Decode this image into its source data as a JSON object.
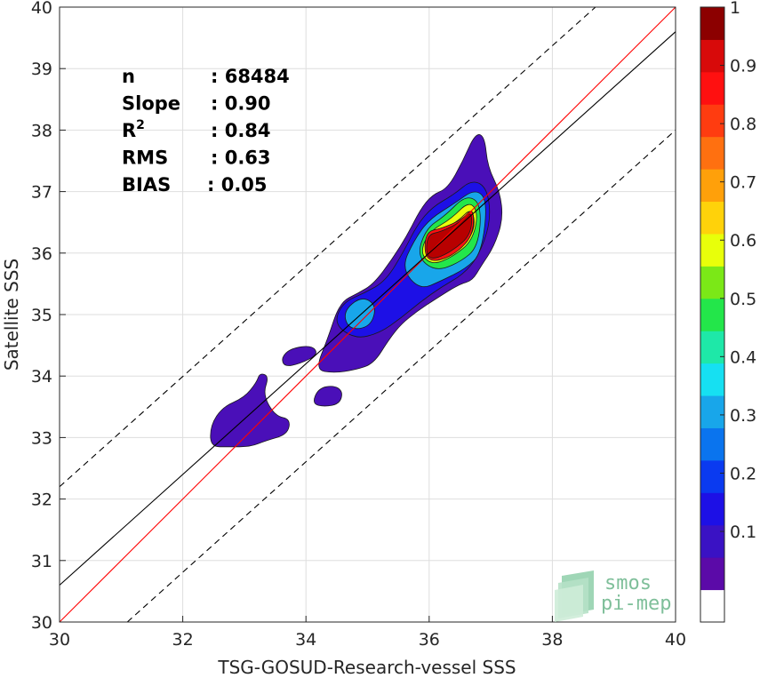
{
  "chart_data": {
    "type": "heatmap",
    "title": "",
    "xlabel": "TSG-GOSUD-Research-vessel SSS",
    "ylabel": "Satellite SSS",
    "xlim": [
      30,
      40
    ],
    "ylim": [
      30,
      40
    ],
    "x_ticks": [
      "30",
      "32",
      "34",
      "36",
      "38",
      "40"
    ],
    "y_ticks": [
      "30",
      "31",
      "32",
      "33",
      "34",
      "35",
      "36",
      "37",
      "38",
      "39",
      "40"
    ],
    "grid": true,
    "colorbar": {
      "ticks": [
        "0.1",
        "0.2",
        "0.3",
        "0.4",
        "0.5",
        "0.6",
        "0.7",
        "0.8",
        "0.9",
        "1"
      ],
      "levels": [
        "#ffffff",
        "#5b0aa8",
        "#3a12c4",
        "#1d10e6",
        "#0a3af0",
        "#0a74ee",
        "#18a6ea",
        "#16e0f2",
        "#1ee8a8",
        "#23e64a",
        "#7be817",
        "#e8ff0a",
        "#ffd20a",
        "#ffa00a",
        "#ff7010",
        "#ff3c10",
        "#ff1010",
        "#d80a0a",
        "#8c0000"
      ]
    },
    "stats": [
      {
        "label": "n",
        "value": ": 68484"
      },
      {
        "label": "Slope",
        "value": ": 0.90"
      },
      {
        "label": "R²",
        "value": ": 0.84"
      },
      {
        "label": "RMS",
        "value": ": 0.63"
      },
      {
        "label": "BIAS",
        "value": ": 0.05"
      }
    ],
    "lines": {
      "identity": {
        "color": "#ff0000",
        "x": [
          30,
          40
        ],
        "y": [
          30,
          40
        ]
      },
      "fit": {
        "color": "#000000",
        "x": [
          30,
          40
        ],
        "y": [
          30.6,
          39.6
        ]
      },
      "upper_bound": {
        "color": "#000000",
        "style": "dashed",
        "x": [
          30,
          38.7
        ],
        "y": [
          32.2,
          40
        ]
      },
      "lower_bound": {
        "color": "#000000",
        "style": "dashed",
        "x": [
          31.1,
          40
        ],
        "y": [
          30,
          38
        ]
      }
    },
    "density_contours": [
      {
        "level": 0.05,
        "color": "#4a0fb8",
        "points": [
          [
            32.45,
            32.85
          ],
          [
            32.45,
            33.2
          ],
          [
            32.65,
            33.5
          ],
          [
            33.0,
            33.65
          ],
          [
            33.2,
            33.9
          ],
          [
            33.25,
            34.05
          ],
          [
            33.4,
            34.0
          ],
          [
            33.3,
            33.7
          ],
          [
            33.5,
            33.35
          ],
          [
            33.75,
            33.3
          ],
          [
            33.7,
            33.05
          ],
          [
            33.35,
            32.95
          ],
          [
            33.1,
            32.85
          ],
          [
            32.75,
            32.85
          ]
        ]
      },
      {
        "level": 0.05,
        "color": "#4a0fb8",
        "points": [
          [
            33.6,
            34.3
          ],
          [
            33.75,
            34.45
          ],
          [
            34.1,
            34.5
          ],
          [
            34.2,
            34.35
          ],
          [
            33.9,
            34.2
          ],
          [
            33.65,
            34.15
          ]
        ]
      },
      {
        "level": 0.05,
        "color": "#4a0fb8",
        "points": [
          [
            34.1,
            33.55
          ],
          [
            34.2,
            33.8
          ],
          [
            34.45,
            33.85
          ],
          [
            34.6,
            33.75
          ],
          [
            34.55,
            33.55
          ],
          [
            34.3,
            33.5
          ]
        ]
      },
      {
        "level": 0.05,
        "color": "#4a0fb8",
        "points": [
          [
            34.15,
            34.1
          ],
          [
            34.35,
            34.6
          ],
          [
            34.55,
            35.2
          ],
          [
            34.85,
            35.35
          ],
          [
            35.1,
            35.5
          ],
          [
            35.4,
            35.9
          ],
          [
            35.65,
            36.3
          ],
          [
            35.85,
            36.7
          ],
          [
            36.05,
            36.95
          ],
          [
            36.3,
            37.05
          ],
          [
            36.55,
            37.5
          ],
          [
            36.75,
            37.95
          ],
          [
            36.9,
            37.9
          ],
          [
            36.95,
            37.4
          ],
          [
            37.15,
            37.0
          ],
          [
            37.2,
            36.55
          ],
          [
            37.05,
            36.1
          ],
          [
            36.85,
            35.8
          ],
          [
            36.7,
            35.55
          ],
          [
            36.5,
            35.5
          ],
          [
            36.1,
            35.25
          ],
          [
            35.8,
            35.05
          ],
          [
            35.55,
            34.85
          ],
          [
            35.35,
            34.6
          ],
          [
            35.1,
            34.2
          ],
          [
            34.8,
            34.1
          ],
          [
            34.45,
            34.05
          ]
        ]
      },
      {
        "level": 0.2,
        "color": "#1d10e6",
        "points": [
          [
            34.45,
            34.85
          ],
          [
            34.6,
            35.2
          ],
          [
            34.95,
            35.35
          ],
          [
            35.3,
            35.55
          ],
          [
            35.6,
            36.05
          ],
          [
            35.8,
            36.45
          ],
          [
            36.05,
            36.75
          ],
          [
            36.4,
            36.95
          ],
          [
            36.7,
            37.2
          ],
          [
            36.95,
            37.05
          ],
          [
            37.0,
            36.5
          ],
          [
            36.8,
            35.95
          ],
          [
            36.55,
            35.65
          ],
          [
            36.2,
            35.45
          ],
          [
            35.85,
            35.2
          ],
          [
            35.55,
            34.95
          ],
          [
            35.2,
            34.7
          ],
          [
            34.8,
            34.6
          ]
        ]
      },
      {
        "level": 0.3,
        "color": "#18a6ea",
        "points": [
          [
            34.6,
            35.05
          ],
          [
            34.9,
            35.3
          ],
          [
            35.15,
            35.15
          ],
          [
            35.05,
            34.8
          ],
          [
            34.7,
            34.75
          ]
        ]
      },
      {
        "level": 0.3,
        "color": "#18a6ea",
        "points": [
          [
            35.55,
            35.75
          ],
          [
            35.75,
            36.2
          ],
          [
            36.0,
            36.55
          ],
          [
            36.4,
            36.8
          ],
          [
            36.75,
            37.05
          ],
          [
            36.95,
            36.85
          ],
          [
            36.85,
            36.0
          ],
          [
            36.6,
            35.75
          ],
          [
            36.2,
            35.55
          ],
          [
            35.85,
            35.4
          ]
        ]
      },
      {
        "level": 0.5,
        "color": "#23e64a",
        "points": [
          [
            35.8,
            35.95
          ],
          [
            35.95,
            36.4
          ],
          [
            36.25,
            36.6
          ],
          [
            36.6,
            36.95
          ],
          [
            36.85,
            36.8
          ],
          [
            36.8,
            36.1
          ],
          [
            36.5,
            35.85
          ],
          [
            36.1,
            35.7
          ]
        ]
      },
      {
        "level": 0.6,
        "color": "#e8ff0a",
        "points": [
          [
            35.85,
            36.0
          ],
          [
            36.0,
            36.35
          ],
          [
            36.35,
            36.55
          ],
          [
            36.65,
            36.85
          ],
          [
            36.8,
            36.65
          ],
          [
            36.7,
            36.2
          ],
          [
            36.4,
            35.95
          ],
          [
            36.05,
            35.8
          ]
        ]
      },
      {
        "level": 0.7,
        "color": "#ffa00a",
        "points": [
          [
            35.9,
            35.95
          ],
          [
            36.05,
            36.3
          ],
          [
            36.45,
            36.5
          ],
          [
            36.7,
            36.75
          ],
          [
            36.75,
            36.4
          ],
          [
            36.55,
            36.1
          ],
          [
            36.2,
            35.9
          ]
        ]
      },
      {
        "level": 0.9,
        "color": "#ff1010",
        "points": [
          [
            35.92,
            35.95
          ],
          [
            35.95,
            36.35
          ],
          [
            36.2,
            36.4
          ],
          [
            36.55,
            36.55
          ],
          [
            36.72,
            36.75
          ],
          [
            36.72,
            36.3
          ],
          [
            36.45,
            36.0
          ],
          [
            36.1,
            35.85
          ]
        ]
      },
      {
        "level": 1.0,
        "color": "#b80000",
        "points": [
          [
            35.95,
            35.95
          ],
          [
            35.97,
            36.3
          ],
          [
            36.2,
            36.35
          ],
          [
            36.5,
            36.5
          ],
          [
            36.7,
            36.7
          ],
          [
            36.68,
            36.3
          ],
          [
            36.4,
            36.05
          ],
          [
            36.1,
            35.9
          ]
        ]
      }
    ]
  },
  "logo": {
    "line1": "smos",
    "line2": "pi-mep"
  }
}
